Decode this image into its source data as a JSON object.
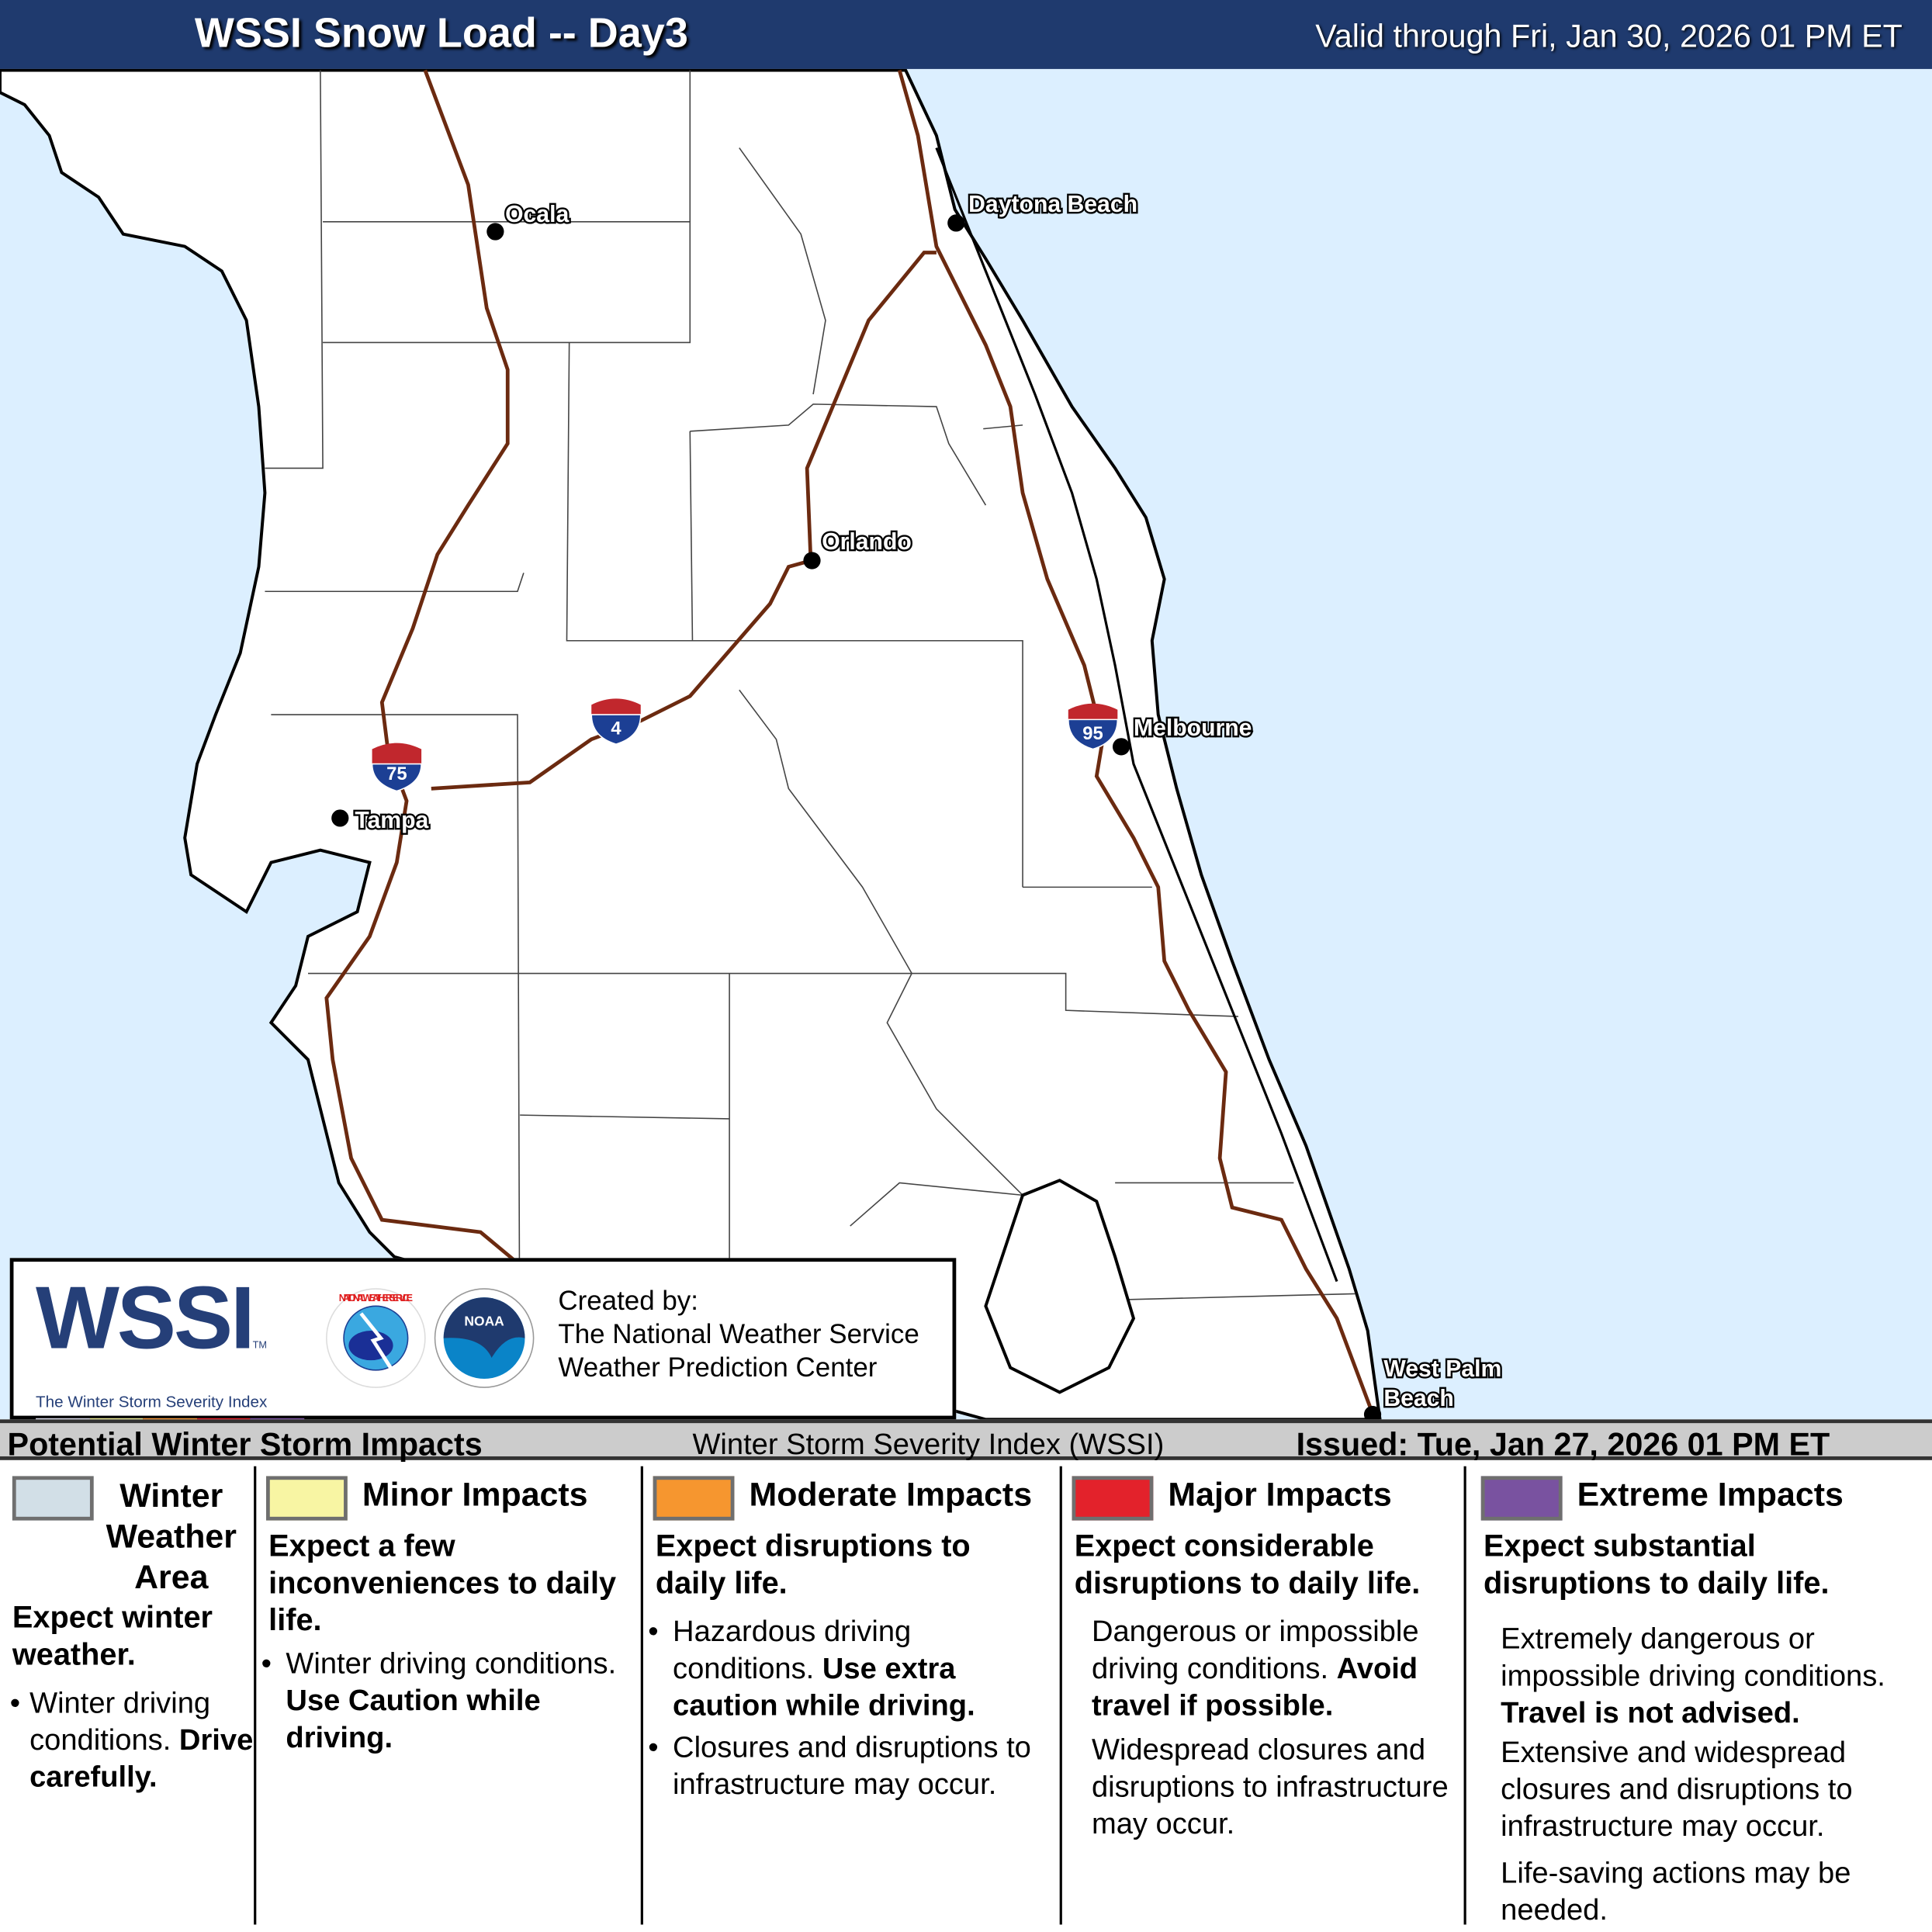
{
  "header": {
    "title": "WSSI Snow Load -- Day3",
    "valid": "Valid through Fri, Jan 30, 2026 01 PM ET"
  },
  "map": {
    "colors": {
      "ocean": "#dcefff",
      "land": "#ffffff",
      "highway": "#6b2a10"
    },
    "cities": [
      "Ocala",
      "Daytona Beach",
      "Orlando",
      "Melbourne",
      "Tampa",
      "West Palm",
      "Beach"
    ],
    "interstates": [
      "75",
      "4",
      "95"
    ]
  },
  "logo": {
    "wssi": "WSSI",
    "tm": "TM",
    "subtitle": "The Winter Storm Severity Index",
    "nws_text": "NATIONAL WEATHER SERVICE",
    "noaa_text": "NOAA",
    "created_by": "Created by:",
    "org1": "The National Weather Service",
    "org2": "Weather Prediction Center",
    "scale_colors": [
      "#d9d9e8",
      "#eeee99",
      "#f7993a",
      "#e3222b",
      "#7b53a2"
    ]
  },
  "legend_header": {
    "left": "Potential Winter Storm Impacts",
    "middle": "Winter Storm Severity Index (WSSI)",
    "right": "Issued: Tue, Jan 27, 2026 01 PM ET"
  },
  "legend": [
    {
      "title1": "Winter",
      "title2": "Weather",
      "title3": "Area",
      "color": "#d2dfe7",
      "summary": "Expect winter weather.",
      "b1": "Winter driving conditions.",
      "b1_bold": "Drive carefully."
    },
    {
      "title": "Minor Impacts",
      "color": "#f8f5a3",
      "summary": "Expect a few inconveniences to daily life.",
      "b1": "Winter driving conditions.",
      "b1_bold": "Use Caution while driving."
    },
    {
      "title": "Moderate Impacts",
      "color": "#f6962f",
      "summary": "Expect disruptions to daily life.",
      "b1": "Hazardous driving conditions.",
      "b1_bold": "Use extra caution while driving.",
      "b2": "Closures and disruptions to infrastructure may occur."
    },
    {
      "title": "Major Impacts",
      "color": "#e3222b",
      "summary": "Expect considerable disruptions to daily life.",
      "p1": "Dangerous or impossible driving conditions.",
      "p1_bold": "Avoid travel if possible.",
      "p2": "Widespread closures and disruptions to infrastructure may occur."
    },
    {
      "title": "Extreme Impacts",
      "color": "#7952a0",
      "summary": "Expect substantial disruptions to daily life.",
      "p1": "Extremely dangerous or impossible driving conditions.",
      "p1_bold": "Travel is not advised.",
      "p2": "Extensive and widespread closures and disruptions to infrastructure may occur.",
      "p3": "Life-saving actions may be needed."
    }
  ]
}
